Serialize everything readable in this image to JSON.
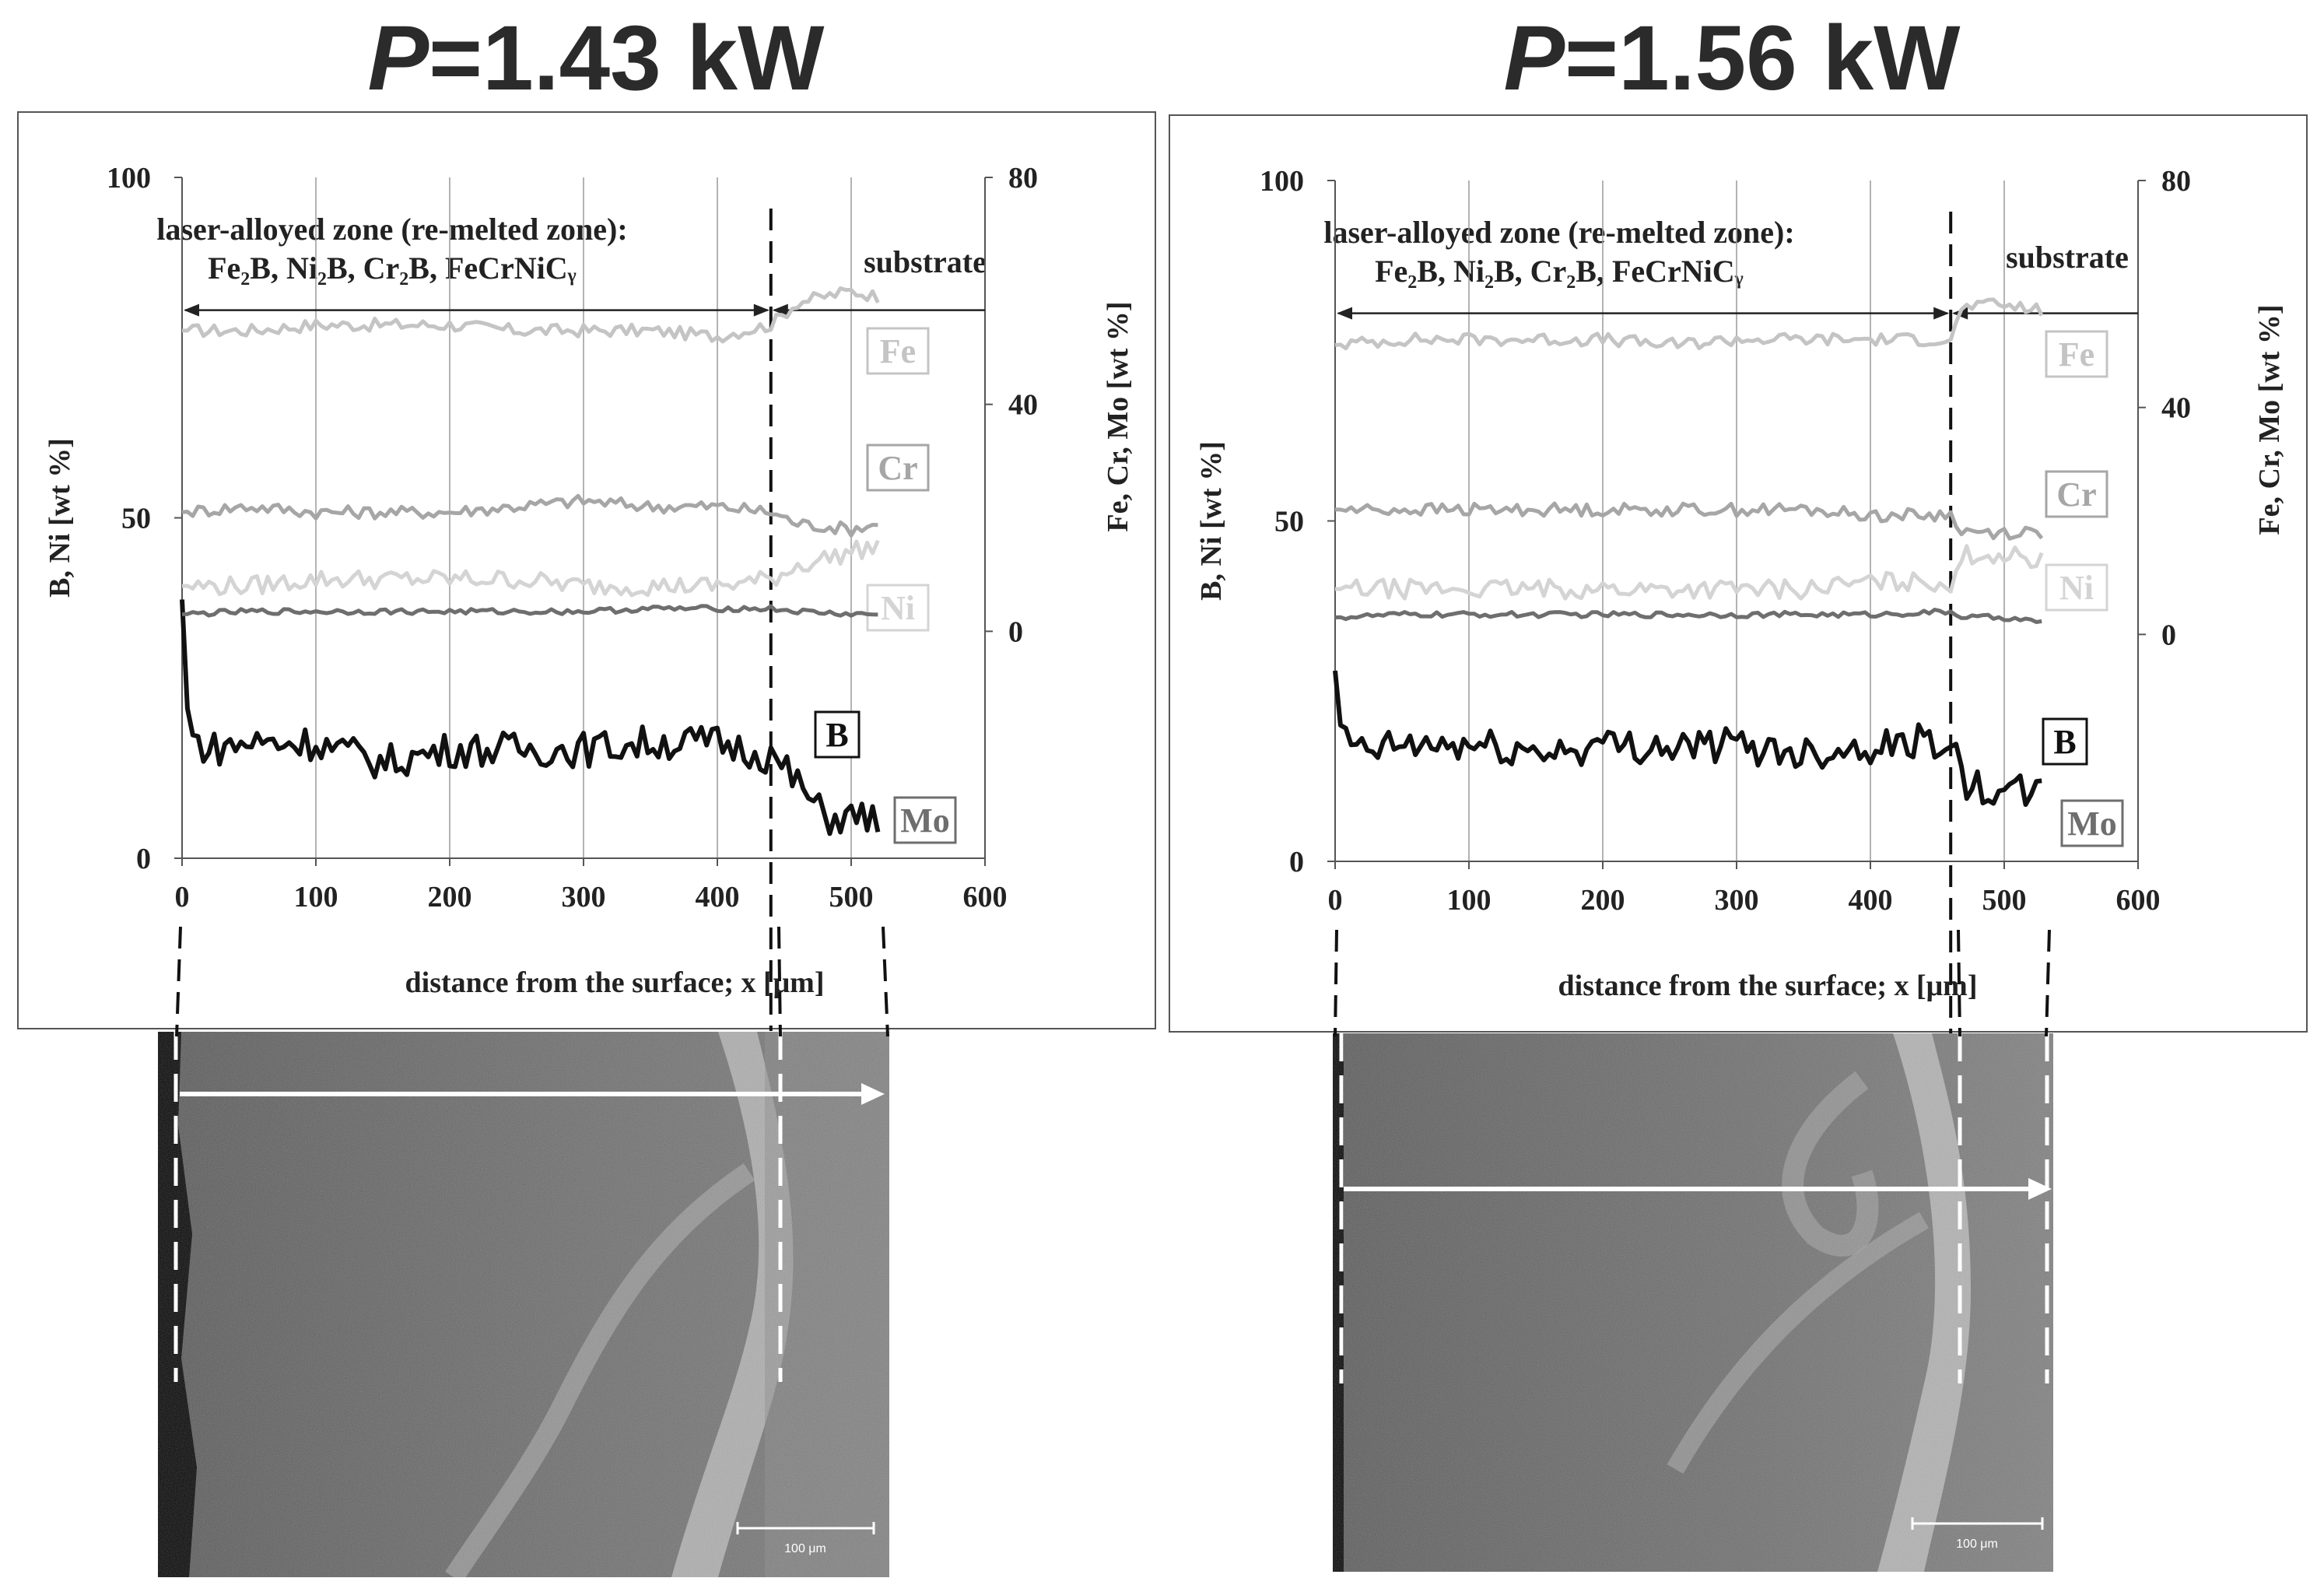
{
  "panels": [
    {
      "title_var": "P",
      "title_value": "=1.43 kW",
      "zone_label_line1": "laser-alloyed zone (re-melted zone):",
      "zone_label_line2": "Fe₂B, Ni₂B, Cr₂B, FeCrNiCᵧ",
      "substrate_label": "substrate",
      "scale_label": "100 μm"
    },
    {
      "title_var": "P",
      "title_value": "=1.56 kW",
      "zone_label_line1": "laser-alloyed zone (re-melted zone):",
      "zone_label_line2": "Fe₂B, Ni₂B, Cr₂B, FeCrNiCᵧ",
      "substrate_label": "substrate",
      "scale_label": "100 μm"
    }
  ],
  "chart_data": [
    {
      "type": "line",
      "xlabel": "distance from the surface; x [μm]",
      "ylabel": "B, Ni [wt %]",
      "y2label": "Fe, Cr, Mo [wt %]",
      "xlim": [
        0,
        600
      ],
      "ylim": [
        0,
        100
      ],
      "y2lim": [
        0,
        80
      ],
      "xticks": [
        "0",
        "100",
        "200",
        "300",
        "400",
        "500",
        "600"
      ],
      "yticks": [
        "0",
        "50",
        "100"
      ],
      "y2ticks": [
        "0",
        "40",
        "80"
      ],
      "boundary_x": 440,
      "grid": true,
      "series": [
        {
          "name": "Fe",
          "axis": "right",
          "color": "#c4c4c4",
          "x": [
            0,
            50,
            100,
            150,
            200,
            250,
            300,
            350,
            400,
            440,
            460,
            500,
            520
          ],
          "values": [
            53,
            53,
            54,
            54,
            54,
            53,
            53,
            53,
            52,
            54,
            58,
            60,
            59
          ]
        },
        {
          "name": "Cr",
          "axis": "right",
          "color": "#a6a6a6",
          "x": [
            0,
            50,
            100,
            150,
            200,
            250,
            300,
            350,
            400,
            440,
            460,
            500,
            520
          ],
          "values": [
            21,
            22,
            21,
            21,
            21,
            22,
            23,
            22,
            22,
            21,
            19,
            18,
            19
          ]
        },
        {
          "name": "Ni",
          "axis": "left",
          "color": "#d4d4d4",
          "x": [
            0,
            50,
            100,
            150,
            200,
            250,
            300,
            350,
            400,
            440,
            460,
            500,
            520
          ],
          "values": [
            40,
            40,
            41,
            41,
            41,
            41,
            40,
            40,
            40,
            41,
            43,
            45,
            46
          ]
        },
        {
          "name": "B",
          "axis": "left",
          "color": "#111111",
          "x": [
            0,
            5,
            20,
            50,
            100,
            150,
            200,
            250,
            300,
            350,
            400,
            440,
            460,
            480,
            500,
            520
          ],
          "values": [
            38,
            18,
            16,
            17,
            17,
            14,
            16,
            16,
            16,
            17,
            17,
            15,
            11,
            6,
            6,
            6
          ]
        },
        {
          "name": "Mo",
          "axis": "right",
          "color": "#6e6e6e",
          "x": [
            0,
            50,
            100,
            150,
            200,
            250,
            300,
            350,
            400,
            440,
            460,
            500,
            520
          ],
          "values": [
            3,
            3.5,
            3.5,
            3.5,
            3.5,
            3.5,
            3.5,
            4,
            4,
            4,
            3.5,
            3,
            3
          ]
        }
      ]
    },
    {
      "type": "line",
      "xlabel": "distance from the surface; x [μm]",
      "ylabel": "B, Ni [wt %]",
      "y2label": "Fe, Cr, Mo [wt %]",
      "xlim": [
        0,
        600
      ],
      "ylim": [
        0,
        100
      ],
      "y2lim": [
        0,
        80
      ],
      "xticks": [
        "0",
        "100",
        "200",
        "300",
        "400",
        "500",
        "600"
      ],
      "yticks": [
        "0",
        "50",
        "100"
      ],
      "y2ticks": [
        "0",
        "40",
        "80"
      ],
      "boundary_x": 460,
      "grid": true,
      "series": [
        {
          "name": "Fe",
          "axis": "right",
          "color": "#c4c4c4",
          "x": [
            0,
            50,
            100,
            150,
            200,
            250,
            300,
            350,
            400,
            460,
            470,
            500,
            530
          ],
          "values": [
            51,
            52,
            52,
            52,
            52,
            51,
            52,
            52,
            52,
            52,
            58,
            58,
            57
          ]
        },
        {
          "name": "Cr",
          "axis": "right",
          "color": "#a6a6a6",
          "x": [
            0,
            50,
            100,
            150,
            200,
            250,
            300,
            350,
            400,
            460,
            470,
            500,
            530
          ],
          "values": [
            22,
            22,
            22,
            22,
            22,
            22,
            22,
            22,
            21,
            21,
            18,
            18,
            18
          ]
        },
        {
          "name": "Ni",
          "axis": "left",
          "color": "#d4d4d4",
          "x": [
            0,
            50,
            100,
            150,
            200,
            250,
            300,
            350,
            400,
            460,
            470,
            500,
            530
          ],
          "values": [
            40,
            40,
            40,
            40,
            40,
            40,
            40,
            40,
            41,
            41,
            45,
            45,
            44
          ]
        },
        {
          "name": "B",
          "axis": "left",
          "color": "#111111",
          "x": [
            0,
            5,
            20,
            50,
            100,
            150,
            200,
            250,
            300,
            350,
            400,
            460,
            470,
            500,
            530
          ],
          "values": [
            28,
            18,
            16,
            17,
            17,
            16,
            17,
            17,
            17,
            16,
            17,
            18,
            11,
            10,
            10
          ]
        },
        {
          "name": "Mo",
          "axis": "right",
          "color": "#6e6e6e",
          "x": [
            0,
            50,
            100,
            150,
            200,
            250,
            300,
            350,
            400,
            460,
            470,
            500,
            530
          ],
          "values": [
            3,
            3.5,
            3.5,
            3.5,
            3.5,
            3.5,
            3.5,
            3.5,
            3.5,
            4,
            3,
            3,
            2
          ]
        }
      ]
    }
  ]
}
